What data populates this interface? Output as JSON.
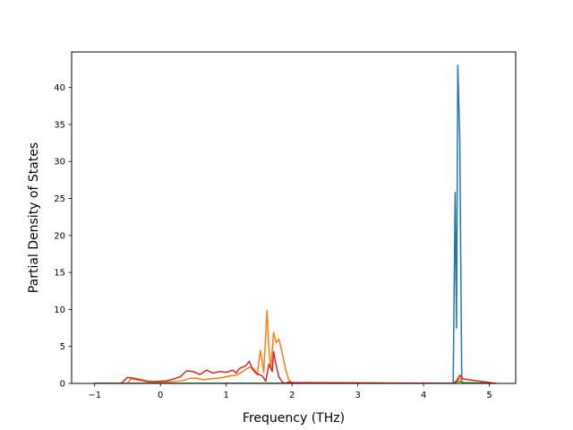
{
  "chart_data": {
    "type": "line",
    "title": "",
    "xlabel": "Frequency (THz)",
    "ylabel": "Partial Density of States",
    "xlim": [
      -1.35,
      5.4
    ],
    "ylim": [
      0,
      44.8
    ],
    "xticks": [
      -1,
      0,
      1,
      2,
      3,
      4,
      5
    ],
    "yticks": [
      0,
      5,
      10,
      15,
      20,
      25,
      30,
      35,
      40
    ],
    "grid": false,
    "legend": "none",
    "series": [
      {
        "color": "#1f77b4",
        "x": [
          -1.0,
          4.45,
          4.48,
          4.5,
          4.52,
          4.55,
          4.58,
          4.6,
          5.1
        ],
        "y": [
          0,
          0,
          25.8,
          7.5,
          43.0,
          33.0,
          0.3,
          0,
          0
        ]
      },
      {
        "color": "#ff7f0e",
        "x": [
          -1.0,
          -0.5,
          -0.45,
          -0.3,
          -0.2,
          0.0,
          0.2,
          0.35,
          0.45,
          0.55,
          0.65,
          0.75,
          0.85,
          0.95,
          1.05,
          1.15,
          1.25,
          1.35,
          1.42,
          1.47,
          1.52,
          1.57,
          1.62,
          1.65,
          1.68,
          1.72,
          1.76,
          1.8,
          1.85,
          1.9,
          1.95,
          2.0,
          4.45,
          4.5,
          4.55,
          4.6,
          5.1
        ],
        "y": [
          0,
          0,
          0.6,
          0.4,
          0.2,
          0.2,
          0.25,
          0.4,
          0.7,
          0.7,
          0.5,
          0.6,
          0.7,
          0.8,
          1.0,
          1.1,
          1.6,
          2.2,
          2.0,
          1.2,
          4.5,
          1.5,
          9.9,
          4.5,
          2.0,
          6.9,
          5.5,
          6.0,
          4.2,
          2.0,
          0.5,
          0.1,
          0,
          0.4,
          0.7,
          0.1,
          0
        ]
      },
      {
        "color": "#2ca02c",
        "x": [
          -1.0,
          4.45,
          4.5,
          4.55,
          4.6,
          5.1
        ],
        "y": [
          0,
          0,
          0.2,
          0.3,
          0.1,
          0
        ]
      },
      {
        "color": "#d62728",
        "x": [
          -1.0,
          -0.6,
          -0.5,
          -0.4,
          -0.3,
          -0.2,
          -0.1,
          0.0,
          0.1,
          0.2,
          0.3,
          0.4,
          0.5,
          0.6,
          0.7,
          0.8,
          0.9,
          1.0,
          1.1,
          1.15,
          1.2,
          1.3,
          1.35,
          1.4,
          1.45,
          1.5,
          1.55,
          1.6,
          1.65,
          1.7,
          1.72,
          1.75,
          1.8,
          1.85,
          1.9,
          1.95,
          2.0,
          4.45,
          4.5,
          4.55,
          4.6,
          5.1
        ],
        "y": [
          0,
          0,
          0.8,
          0.7,
          0.5,
          0.3,
          0.25,
          0.3,
          0.35,
          0.6,
          0.9,
          1.7,
          1.6,
          1.2,
          1.8,
          1.4,
          1.6,
          1.5,
          1.8,
          1.4,
          2.0,
          2.4,
          3.0,
          1.9,
          1.4,
          1.2,
          1.0,
          0.3,
          2.6,
          1.6,
          4.3,
          2.8,
          0.9,
          0.2,
          0.0,
          0.2,
          0.1,
          0,
          0.3,
          1.1,
          0.6,
          0
        ]
      }
    ]
  }
}
